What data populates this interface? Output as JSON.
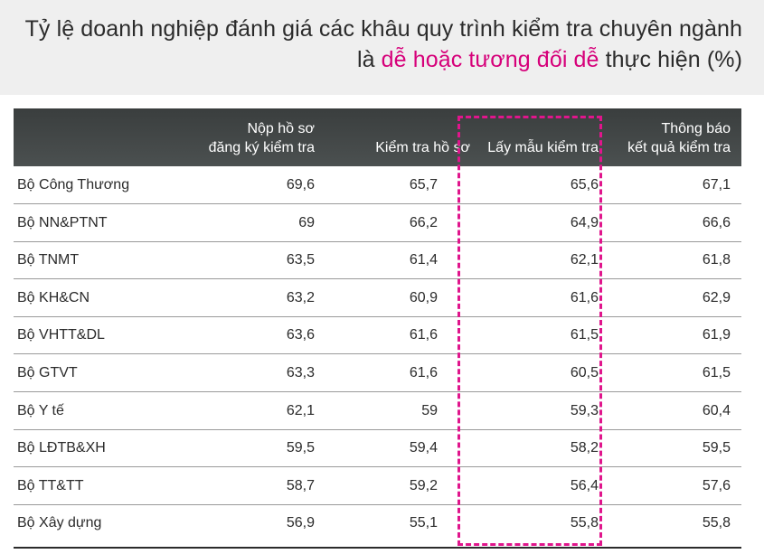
{
  "title": {
    "line1": "Tỷ lệ doanh nghiệp đánh giá các khâu quy trình kiểm tra chuyên ngành",
    "line2_prefix": "là ",
    "line2_highlight": "dễ hoặc tương đối dễ",
    "line2_suffix": " thực hiện (%)"
  },
  "colors": {
    "highlight": "#d6007a",
    "header_bg": "#434747",
    "dash_box": "#e0158c"
  },
  "chart_data": {
    "type": "table",
    "columns": [
      {
        "line1": "Nộp hồ sơ",
        "line2": "đăng ký kiểm tra"
      },
      {
        "line1": "Kiểm tra hồ sơ",
        "line2": ""
      },
      {
        "line1": "Lấy mẫu kiểm tra",
        "line2": ""
      },
      {
        "line1": "Thông báo",
        "line2": "kết quả kiểm tra"
      }
    ],
    "rows": [
      {
        "name": "Bộ Công Thương",
        "values": [
          "69,6",
          "65,7",
          "65,6",
          "67,1"
        ]
      },
      {
        "name": "Bộ NN&PTNT",
        "values": [
          "69",
          "66,2",
          "64,9",
          "66,6"
        ]
      },
      {
        "name": "Bộ TNMT",
        "values": [
          "63,5",
          "61,4",
          "62,1",
          "61,8"
        ]
      },
      {
        "name": "Bộ KH&CN",
        "values": [
          "63,2",
          "60,9",
          "61,6",
          "62,9"
        ]
      },
      {
        "name": "Bộ VHTT&DL",
        "values": [
          "63,6",
          "61,6",
          "61,5",
          "61,9"
        ]
      },
      {
        "name": "Bộ GTVT",
        "values": [
          "63,3",
          "61,6",
          "60,5",
          "61,5"
        ]
      },
      {
        "name": "Bộ Y tế",
        "values": [
          "62,1",
          "59",
          "59,3",
          "60,4"
        ]
      },
      {
        "name": "Bộ LĐTB&XH",
        "values": [
          "59,5",
          "59,4",
          "58,2",
          "59,5"
        ]
      },
      {
        "name": "Bộ TT&TT",
        "values": [
          "58,7",
          "59,2",
          "56,4",
          "57,6"
        ]
      },
      {
        "name": "Bộ Xây dựng",
        "values": [
          "56,9",
          "55,1",
          "55,8",
          "55,8"
        ]
      }
    ],
    "highlighted_column": 2
  }
}
